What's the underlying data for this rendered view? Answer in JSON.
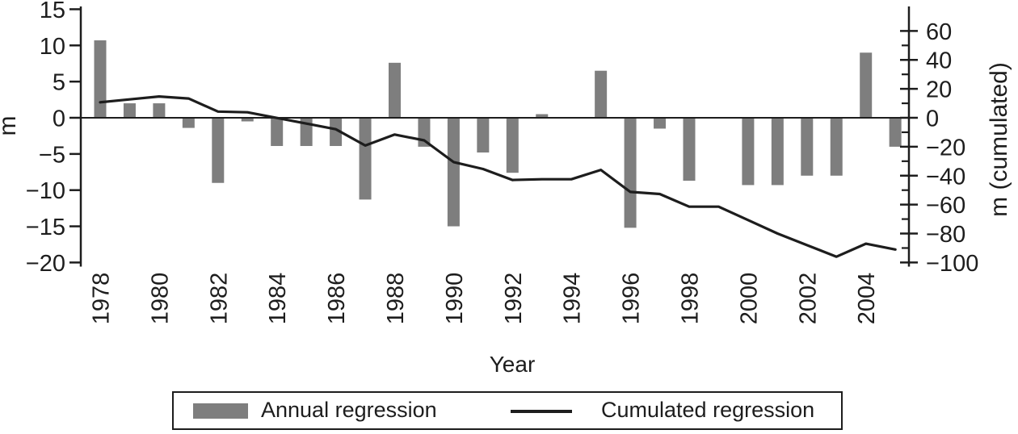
{
  "figure": {
    "y_left_label": "m",
    "y_right_label": "m (cumulated)",
    "x_label": "Year",
    "legend": {
      "annual_label": "Annual regression",
      "cumulated_label": "Cumulated regression"
    },
    "colors": {
      "bar": "#7e7e7e",
      "line": "#1d1d1d",
      "axis": "#1d1d1d",
      "text": "#1d1d1d"
    }
  },
  "chart_data": {
    "type": "bar+line",
    "x": [
      1978,
      1979,
      1980,
      1981,
      1982,
      1983,
      1984,
      1985,
      1986,
      1987,
      1988,
      1989,
      1990,
      1991,
      1992,
      1993,
      1994,
      1995,
      1996,
      1997,
      1998,
      1999,
      2000,
      2001,
      2002,
      2003,
      2004,
      2005
    ],
    "x_tick_labels": [
      "1978",
      "1980",
      "1982",
      "1984",
      "1986",
      "1988",
      "1990",
      "1992",
      "1994",
      "1996",
      "1998",
      "2000",
      "2002",
      "2004"
    ],
    "series": [
      {
        "name": "Annual regression",
        "type": "bar",
        "axis": "left",
        "values": [
          10.7,
          2.0,
          2.0,
          -1.4,
          -9.0,
          -0.5,
          -3.9,
          -3.9,
          -3.9,
          -11.3,
          7.6,
          -4.0,
          -15.0,
          -4.8,
          -7.6,
          0.5,
          0.0,
          6.5,
          -15.2,
          -1.5,
          -8.7,
          0.0,
          -9.3,
          -9.3,
          -8.0,
          -8.0,
          9.0,
          -4.0
        ]
      },
      {
        "name": "Cumulated regression",
        "type": "line",
        "axis": "right",
        "values": [
          10.7,
          12.7,
          14.7,
          13.3,
          4.3,
          3.8,
          -0.1,
          -4.0,
          -7.9,
          -19.2,
          -11.6,
          -15.6,
          -30.6,
          -35.4,
          -43.0,
          -42.5,
          -42.5,
          -36.0,
          -51.2,
          -52.7,
          -61.4,
          -61.4,
          -70.7,
          -80.0,
          -88.0,
          -96.0,
          -87.0,
          -91.0
        ]
      }
    ],
    "left_axis": {
      "label": "m",
      "ticks": [
        15,
        10,
        5,
        0,
        -5,
        -10,
        -15,
        -20
      ],
      "lim": [
        -20,
        15
      ]
    },
    "right_axis": {
      "label": "m (cumulated)",
      "major_ticks": [
        60,
        40,
        20,
        0,
        -20,
        -40,
        -60,
        -80,
        -100
      ],
      "minor_ticks": [
        50,
        30,
        10,
        -10,
        -30,
        -50,
        -70,
        -90
      ],
      "lim": [
        -100,
        60
      ]
    },
    "x_axis": {
      "label": "Year"
    },
    "grid": false,
    "legend_position": "bottom"
  }
}
